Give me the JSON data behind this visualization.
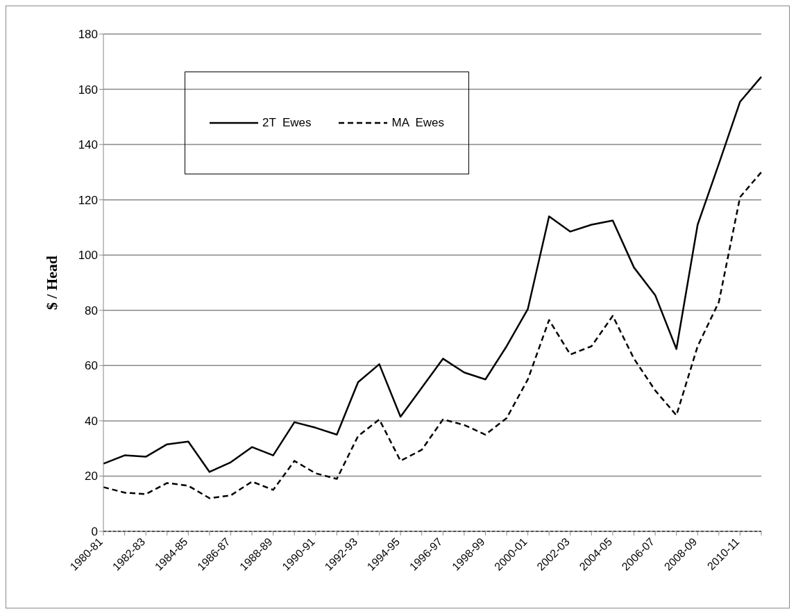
{
  "chart_data": {
    "type": "line",
    "ylabel": "$ / Head",
    "categories": [
      "1980-81",
      null,
      "1982-83",
      null,
      "1984-85",
      null,
      "1986-87",
      null,
      "1988-89",
      null,
      "1990-91",
      null,
      "1992-93",
      null,
      "1994-95",
      null,
      "1996-97",
      null,
      "1998-99",
      null,
      "2000-01",
      null,
      "2002-03",
      null,
      "2004-05",
      null,
      "2006-07",
      null,
      "2008-09",
      null,
      "2010-11",
      null
    ],
    "series": [
      {
        "name": "2T  Ewes",
        "color": "#000000",
        "line_style": "solid",
        "values": [
          24.5,
          27.5,
          27,
          31.5,
          32.5,
          21.5,
          25,
          30.5,
          27.5,
          39.5,
          37.5,
          35,
          54,
          60.5,
          41.5,
          52,
          62.5,
          57.5,
          55,
          67,
          80.5,
          114,
          108.5,
          111,
          112.5,
          95.5,
          85.5,
          66,
          111,
          133,
          155.5,
          164.5
        ]
      },
      {
        "name": "MA  Ewes",
        "color": "#000000",
        "line_style": "dashed",
        "values": [
          16,
          14,
          13.5,
          17.5,
          16.5,
          12,
          13,
          18,
          15,
          25.5,
          21,
          19,
          34.5,
          40.5,
          25.5,
          29.5,
          40.5,
          38.5,
          35,
          41,
          55,
          76.5,
          64,
          67,
          78,
          62.5,
          51,
          42,
          67,
          83,
          121,
          130
        ]
      }
    ],
    "ylim": [
      0,
      180
    ],
    "yticks": [
      0,
      20,
      40,
      60,
      80,
      100,
      120,
      140,
      160,
      180
    ],
    "grid": "y",
    "legend": "top left",
    "marker": "none"
  }
}
